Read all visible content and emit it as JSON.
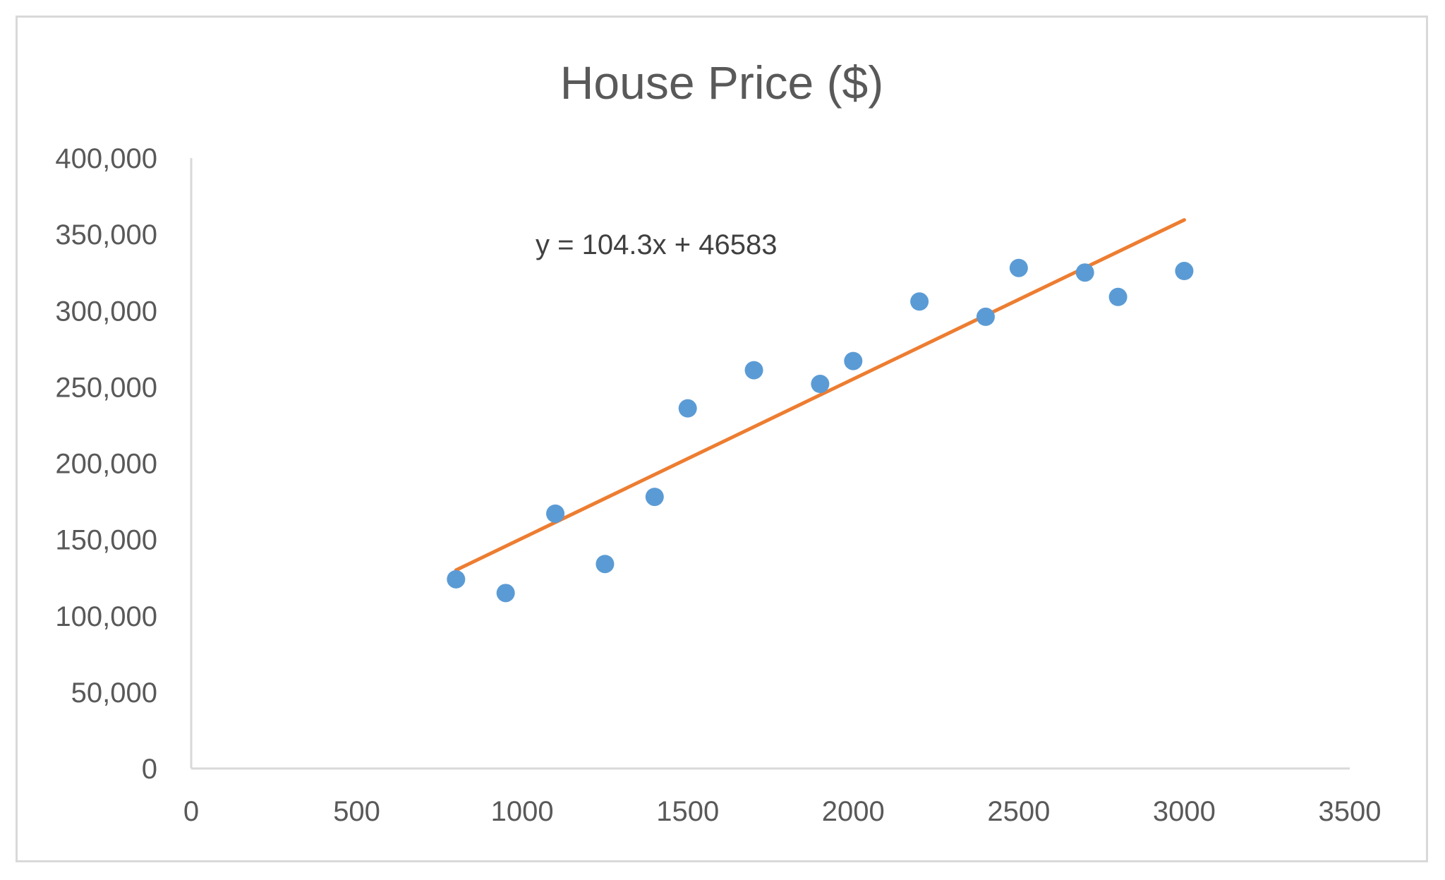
{
  "chart_data": {
    "type": "scatter",
    "title": "House Price ($)",
    "xlabel": "",
    "ylabel": "",
    "xlim": [
      0,
      3500
    ],
    "ylim": [
      0,
      400000
    ],
    "x_ticks": [
      0,
      500,
      1000,
      1500,
      2000,
      2500,
      3000,
      3500
    ],
    "y_ticks": [
      0,
      50000,
      100000,
      150000,
      200000,
      250000,
      300000,
      350000,
      400000
    ],
    "x_tick_labels": [
      "0",
      "500",
      "1000",
      "1500",
      "2000",
      "2500",
      "3000",
      "3500"
    ],
    "y_tick_labels": [
      "0",
      "50,000",
      "100,000",
      "150,000",
      "200,000",
      "250,000",
      "300,000",
      "350,000",
      "400,000"
    ],
    "grid": false,
    "legend": "none",
    "series": [
      {
        "points": [
          {
            "x": 800,
            "y": 124000
          },
          {
            "x": 950,
            "y": 115000
          },
          {
            "x": 1100,
            "y": 167000
          },
          {
            "x": 1250,
            "y": 134000
          },
          {
            "x": 1400,
            "y": 178000
          },
          {
            "x": 1500,
            "y": 236000
          },
          {
            "x": 1700,
            "y": 261000
          },
          {
            "x": 1900,
            "y": 252000
          },
          {
            "x": 2000,
            "y": 267000
          },
          {
            "x": 2200,
            "y": 306000
          },
          {
            "x": 2400,
            "y": 296000
          },
          {
            "x": 2500,
            "y": 328000
          },
          {
            "x": 2700,
            "y": 325000
          },
          {
            "x": 2800,
            "y": 309000
          },
          {
            "x": 3000,
            "y": 326000
          }
        ],
        "color": "#5b9bd5"
      }
    ],
    "trendline": {
      "type": "linear",
      "slope": 104.3,
      "intercept": 46583,
      "x_range": [
        800,
        3000
      ],
      "color": "#ed7d31",
      "equation": "y = 104.3x + 46583"
    }
  },
  "colors": {
    "axis": "#d9d9d9",
    "text": "#595959",
    "points": "#5b9bd5",
    "trendline": "#ed7d31"
  }
}
